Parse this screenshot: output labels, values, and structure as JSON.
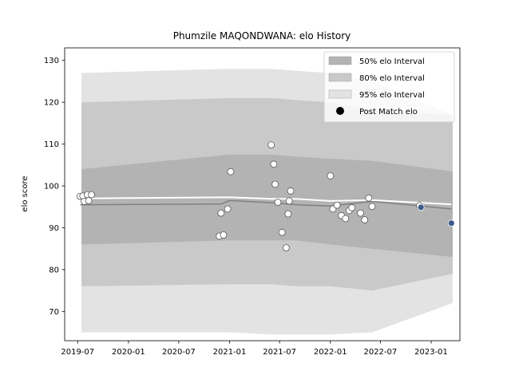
{
  "chart_data": {
    "type": "area",
    "title": "Phumzile MAQONDWANA: elo History",
    "xlabel": "",
    "ylabel": "elo score",
    "xlim": [
      "2019-05-15",
      "2023-04-15"
    ],
    "ylim": [
      63,
      133
    ],
    "x_ticks": [
      "2019-07",
      "2020-01",
      "2020-07",
      "2021-01",
      "2021-07",
      "2022-01",
      "2022-07",
      "2023-01"
    ],
    "y_ticks": [
      70,
      80,
      90,
      100,
      110,
      120,
      130
    ],
    "legend_position": "top-right",
    "legend": [
      "50% elo Interval",
      "80% elo Interval",
      "95% elo Interval",
      "Post Match elo"
    ],
    "colors": {
      "band_50": "#b3b3b3",
      "band_80": "#c9c9c9",
      "band_95": "#e3e3e3",
      "mean_line": "#808080",
      "post_match_line": "#ffffff",
      "point_fill": "#ffffff",
      "point_edge": "#555555",
      "recent_point_fill": "#3b5b88"
    },
    "intervals": {
      "dates": [
        "2019-07-15",
        "2021-01-01",
        "2021-06-01",
        "2021-09-01",
        "2022-01-01",
        "2022-06-01",
        "2023-03-20"
      ],
      "band_50": {
        "lower": [
          86,
          87,
          87,
          87,
          86,
          85,
          83
        ],
        "upper": [
          104,
          107.5,
          107.5,
          107,
          106.5,
          106,
          103.5
        ]
      },
      "band_80": {
        "lower": [
          76,
          76.5,
          76.5,
          76,
          76,
          75,
          79
        ],
        "upper": [
          120,
          121,
          121,
          120.5,
          120,
          118,
          117
        ]
      },
      "band_95": {
        "lower": [
          65,
          65,
          64.5,
          64.5,
          64.5,
          65,
          72
        ],
        "upper": [
          127,
          128,
          128,
          127.5,
          127,
          125,
          117
        ]
      }
    },
    "series": [
      {
        "name": "Post Match elo",
        "points": [
          [
            "2019-07-10",
            97.5
          ],
          [
            "2019-07-20",
            97.6
          ],
          [
            "2019-07-25",
            96.3
          ],
          [
            "2019-08-05",
            97.9
          ],
          [
            "2019-08-10",
            96.5
          ],
          [
            "2019-08-20",
            97.9
          ],
          [
            "2020-11-25",
            88.0
          ],
          [
            "2020-12-01",
            93.5
          ],
          [
            "2020-12-10",
            88.3
          ],
          [
            "2020-12-25",
            94.5
          ],
          [
            "2021-01-05",
            103.4
          ],
          [
            "2021-06-01",
            109.8
          ],
          [
            "2021-06-10",
            105.2
          ],
          [
            "2021-06-15",
            100.4
          ],
          [
            "2021-06-25",
            96.1
          ],
          [
            "2021-07-10",
            88.9
          ],
          [
            "2021-07-25",
            85.2
          ],
          [
            "2021-08-01",
            93.3
          ],
          [
            "2021-08-05",
            96.4
          ],
          [
            "2021-08-10",
            98.8
          ],
          [
            "2022-01-01",
            102.4
          ],
          [
            "2022-01-10",
            94.5
          ],
          [
            "2022-01-25",
            95.4
          ],
          [
            "2022-02-10",
            92.9
          ],
          [
            "2022-02-25",
            92.2
          ],
          [
            "2022-03-10",
            94.1
          ],
          [
            "2022-03-20",
            94.8
          ],
          [
            "2022-04-20",
            93.5
          ],
          [
            "2022-05-05",
            91.9
          ],
          [
            "2022-05-20",
            97.1
          ],
          [
            "2022-06-01",
            95.1
          ],
          [
            "2022-11-20",
            95.3
          ],
          [
            "2022-11-25",
            94.9
          ],
          [
            "2023-03-15",
            91.1
          ]
        ]
      },
      {
        "name": "post-match-line",
        "points": [
          [
            "2019-07-10",
            97.0
          ],
          [
            "2021-01-01",
            97.3
          ],
          [
            "2021-06-01",
            96.9
          ],
          [
            "2021-09-01",
            96.9
          ],
          [
            "2022-01-01",
            96.4
          ],
          [
            "2022-06-01",
            96.6
          ],
          [
            "2023-03-15",
            95.6
          ]
        ]
      },
      {
        "name": "mean-line",
        "points": [
          [
            "2019-07-10",
            95.5
          ],
          [
            "2020-12-01",
            95.7
          ],
          [
            "2021-01-01",
            96.5
          ],
          [
            "2021-06-01",
            96.0
          ],
          [
            "2021-09-01",
            95.5
          ],
          [
            "2022-01-01",
            95.2
          ],
          [
            "2022-06-01",
            96.3
          ],
          [
            "2023-03-15",
            94.5
          ]
        ]
      }
    ]
  }
}
